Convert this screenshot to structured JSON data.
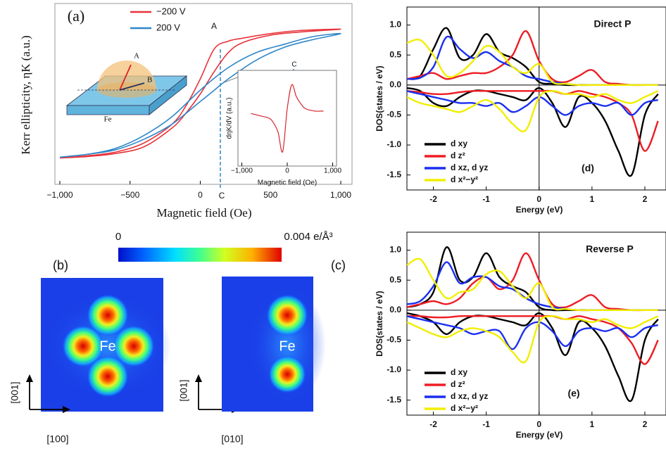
{
  "chart_data": [
    {
      "type": "line",
      "panel_label": "(a)",
      "x_label": "Magnetic field (Oe)",
      "y_label": "Kerr ellipticity, ηK (a.u.)",
      "annotations": [
        "A",
        "B",
        "C",
        "Fe"
      ],
      "xlim": [
        -1035,
        1080
      ],
      "ylim": [
        -1.2,
        1.2
      ],
      "xticks": [
        {
          "value": -1000,
          "label": "−1,000"
        },
        {
          "value": -500,
          "label": "−500"
        },
        0,
        500,
        {
          "value": 1000,
          "label": "1,000"
        }
      ],
      "series": [
        {
          "name": "−200 V",
          "color": "#e8323a",
          "x": [
            -1000,
            -800,
            -600,
            -400,
            -200,
            -100,
            0,
            100,
            200,
            300,
            500,
            700,
            1000,
            700,
            500,
            300,
            200,
            100,
            0,
            -100,
            -200,
            -400,
            -600,
            -800,
            -1000
          ],
          "values": [
            -0.85,
            -0.83,
            -0.79,
            -0.7,
            -0.45,
            -0.25,
            0,
            0.3,
            0.55,
            0.68,
            0.78,
            0.82,
            0.86,
            0.84,
            0.8,
            0.74,
            0.7,
            0.6,
            0.2,
            -0.15,
            -0.4,
            -0.65,
            -0.77,
            -0.82,
            -0.85
          ]
        },
        {
          "name": "200 V",
          "color": "#2f86c8",
          "x": [
            -1000,
            -800,
            -600,
            -400,
            -200,
            0,
            100,
            200,
            400,
            600,
            800,
            1000,
            800,
            600,
            400,
            200,
            0,
            -200,
            -400,
            -600,
            -800,
            -1000
          ],
          "values": [
            -0.84,
            -0.8,
            -0.74,
            -0.6,
            -0.4,
            -0.1,
            0.05,
            0.2,
            0.45,
            0.62,
            0.72,
            0.8,
            0.76,
            0.66,
            0.55,
            0.35,
            0.05,
            -0.3,
            -0.55,
            -0.72,
            -0.8,
            -0.84
          ]
        }
      ]
    },
    {
      "type": "line",
      "x_label": "Magnetic field (Oe)",
      "y_label": "dηK/dV (a.u.)",
      "annotations": [
        "C"
      ],
      "xlim": [
        -1085,
        1085
      ],
      "ylim": [
        -1,
        1
      ],
      "xticks": [
        {
          "value": -1000,
          "label": "−1,000"
        },
        0,
        {
          "value": 1000,
          "label": "1,000"
        }
      ],
      "series": [
        {
          "color": "#d8262e",
          "x": [
            -800,
            -600,
            -400,
            -300,
            -200,
            -100,
            0,
            100,
            200,
            300,
            400,
            600,
            800
          ],
          "values": [
            0.1,
            0.05,
            0.0,
            -0.1,
            -0.3,
            -0.7,
            0.2,
            0.7,
            0.45,
            0.3,
            0.2,
            0.15,
            0.15
          ]
        }
      ]
    },
    {
      "type": "line",
      "title": "Direct P",
      "panel_label": "(d)",
      "x_label": "Energy (eV)",
      "y_label": "DOS(states / eV)",
      "xlim": [
        -2.5,
        2.4
      ],
      "ylim": [
        -1.75,
        1.3
      ],
      "xticks": [
        -2,
        -1,
        0,
        1,
        2
      ],
      "yticks": [
        {
          "value": 1,
          "label": "1.0"
        },
        {
          "value": 0.5,
          "label": "0.5"
        },
        {
          "value": 0,
          "label": "0.0"
        },
        -0.5,
        {
          "value": -1,
          "label": "-1.0"
        },
        -1.5
      ],
      "x": [
        -2.5,
        -2.25,
        -2,
        -1.75,
        -1.5,
        -1.25,
        -1,
        -0.75,
        -0.5,
        -0.25,
        0,
        0.25,
        0.5,
        0.75,
        1,
        1.25,
        1.5,
        1.75,
        2,
        2.25
      ],
      "series": [
        {
          "name": "d xy",
          "color": "#000000",
          "values": [
            0.1,
            0.15,
            0.6,
            0.95,
            0.45,
            0.5,
            0.85,
            0.55,
            0.45,
            0.3,
            0.05,
            0.02,
            0,
            0,
            0,
            0,
            0,
            0,
            0,
            0
          ],
          "values_down": [
            -0.05,
            -0.1,
            -0.3,
            -0.35,
            -0.2,
            -0.1,
            -0.1,
            -0.15,
            -0.2,
            -0.25,
            -0.05,
            -0.3,
            -0.7,
            -0.2,
            -0.3,
            -0.6,
            -1.1,
            -1.5,
            -0.5,
            -0.15
          ]
        },
        {
          "name": "d z²",
          "color": "#ee1c24",
          "values": [
            0.1,
            0.15,
            0.2,
            0.1,
            0.15,
            0.2,
            0.2,
            0.3,
            0.5,
            0.9,
            0.4,
            0.1,
            0.05,
            0.15,
            0.25,
            0.05,
            0.02,
            0,
            0,
            0
          ],
          "values_down": [
            -0.1,
            -0.12,
            -0.15,
            -0.15,
            -0.12,
            -0.1,
            -0.1,
            -0.1,
            -0.1,
            -0.1,
            -0.1,
            -0.1,
            -0.15,
            -0.1,
            -0.15,
            -0.2,
            -0.3,
            -0.5,
            -1.1,
            -0.6
          ]
        },
        {
          "name": "d xz, d yz",
          "color": "#1a2ff0",
          "values": [
            0.1,
            0.12,
            0.3,
            0.8,
            0.6,
            0.45,
            0.55,
            0.4,
            0.3,
            0.15,
            0.1,
            0.05,
            0.02,
            0,
            0,
            0,
            0,
            0,
            0,
            0
          ],
          "values_down": [
            -0.1,
            -0.15,
            -0.2,
            -0.25,
            -0.3,
            -0.3,
            -0.35,
            -0.3,
            -0.45,
            -0.35,
            -0.2,
            -0.35,
            -0.5,
            -0.35,
            -0.3,
            -0.35,
            -0.3,
            -0.5,
            -0.3,
            -0.25
          ]
        },
        {
          "name": "d x²−y²",
          "color": "#f2ee00",
          "values": [
            0.7,
            0.75,
            0.5,
            0.15,
            0.2,
            0.4,
            0.65,
            0.55,
            0.3,
            0.2,
            0.35,
            0.05,
            0.02,
            0,
            0,
            0,
            0,
            0,
            0,
            0
          ],
          "values_down": [
            -0.2,
            -0.3,
            -0.35,
            -0.4,
            -0.45,
            -0.35,
            -0.25,
            -0.4,
            -0.65,
            -0.75,
            -0.2,
            -0.1,
            -0.15,
            -0.15,
            -0.2,
            -0.15,
            -0.25,
            -0.3,
            -0.2,
            -0.1
          ]
        }
      ]
    },
    {
      "type": "line",
      "title": "Reverse P",
      "panel_label": "(e)",
      "x_label": "Energy (eV)",
      "y_label": "DOS(states / eV)",
      "xlim": [
        -2.5,
        2.4
      ],
      "ylim": [
        -1.75,
        1.3
      ],
      "xticks": [
        -2,
        -1,
        0,
        1,
        2
      ],
      "yticks": [
        {
          "value": 1,
          "label": "1.0"
        },
        {
          "value": 0.5,
          "label": "0.5"
        },
        {
          "value": 0,
          "label": "0.0"
        },
        -0.5,
        {
          "value": -1,
          "label": "-1.0"
        },
        -1.5
      ],
      "x": [
        -2.5,
        -2.25,
        -2,
        -1.75,
        -1.5,
        -1.25,
        -1,
        -0.75,
        -0.5,
        -0.25,
        0,
        0.25,
        0.5,
        0.75,
        1,
        1.25,
        1.5,
        1.75,
        2,
        2.25
      ],
      "series": [
        {
          "name": "d xy",
          "color": "#000000",
          "values": [
            0.05,
            0.1,
            0.3,
            1.05,
            0.5,
            0.55,
            0.95,
            0.55,
            0.4,
            0.3,
            0.05,
            0,
            0,
            0,
            0,
            0,
            0,
            0,
            0,
            0
          ],
          "values_down": [
            -0.05,
            -0.1,
            -0.2,
            -0.4,
            -0.2,
            -0.1,
            -0.1,
            -0.15,
            -0.2,
            -0.25,
            -0.05,
            -0.3,
            -0.75,
            -0.2,
            -0.3,
            -0.6,
            -1.1,
            -1.5,
            -0.5,
            -0.15
          ]
        },
        {
          "name": "d z²",
          "color": "#ee1c24",
          "values": [
            0.05,
            0.1,
            0.15,
            0.1,
            0.2,
            0.45,
            0.55,
            0.35,
            0.5,
            0.95,
            0.5,
            0.1,
            0.05,
            0.15,
            0.25,
            0.05,
            0.02,
            0,
            0,
            0
          ],
          "values_down": [
            -0.1,
            -0.1,
            -0.12,
            -0.12,
            -0.1,
            -0.1,
            -0.1,
            -0.1,
            -0.1,
            -0.1,
            -0.1,
            -0.1,
            -0.15,
            -0.1,
            -0.15,
            -0.2,
            -0.3,
            -0.55,
            -0.9,
            -0.5
          ]
        },
        {
          "name": "d xz, d yz",
          "color": "#1a2ff0",
          "values": [
            0.1,
            0.15,
            0.4,
            0.8,
            0.45,
            0.55,
            0.55,
            0.4,
            0.35,
            0.2,
            0.1,
            0.05,
            0.02,
            0,
            0,
            0,
            0,
            0,
            0,
            0
          ],
          "values_down": [
            -0.1,
            -0.15,
            -0.2,
            -0.25,
            -0.3,
            -0.4,
            -0.35,
            -0.35,
            -0.65,
            -0.3,
            -0.2,
            -0.35,
            -0.6,
            -0.35,
            -0.3,
            -0.35,
            -0.3,
            -0.45,
            -0.3,
            -0.25
          ]
        },
        {
          "name": "d x²−y²",
          "color": "#f2ee00",
          "values": [
            0.75,
            0.85,
            0.5,
            0.2,
            0.3,
            0.35,
            0.6,
            0.65,
            0.4,
            0.2,
            0.45,
            0.05,
            0.02,
            0,
            0,
            0,
            0,
            0,
            0,
            0
          ],
          "values_down": [
            -0.2,
            -0.3,
            -0.4,
            -0.45,
            -0.35,
            -0.3,
            -0.35,
            -0.45,
            -0.7,
            -0.85,
            -0.2,
            -0.1,
            -0.15,
            -0.15,
            -0.2,
            -0.15,
            -0.25,
            -0.3,
            -0.2,
            -0.1
          ]
        }
      ]
    }
  ],
  "density_maps": {
    "colorbar": {
      "min_label": "0",
      "max_label": "0.004 e/Å³"
    },
    "panels": [
      {
        "label": "(b)",
        "atom": "Fe",
        "axes": [
          "[001]",
          "[100]"
        ]
      },
      {
        "label": "(c)",
        "atom": "Fe",
        "axes": [
          "[001]",
          "[010]"
        ]
      }
    ]
  }
}
